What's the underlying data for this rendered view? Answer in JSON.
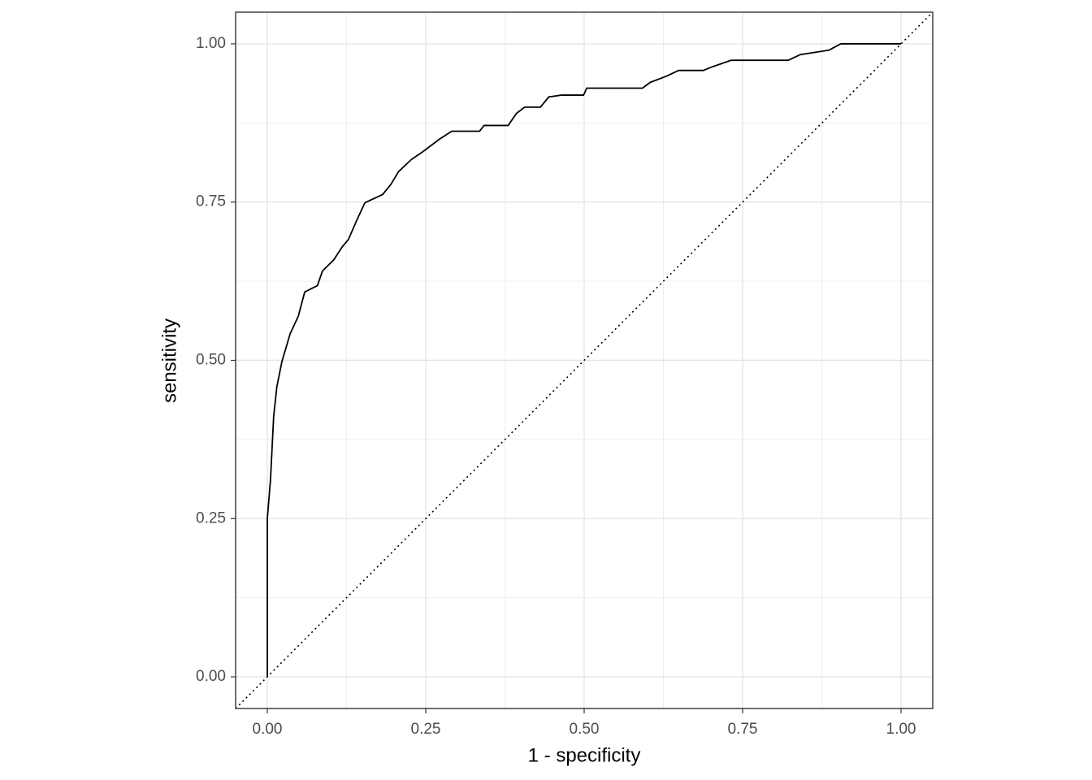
{
  "chart_data": {
    "type": "line",
    "x_label": "1 - specificity",
    "y_label": "sensitivity",
    "xlim": [
      -0.05,
      1.05
    ],
    "ylim": [
      -0.05,
      1.05
    ],
    "xticks": [
      {
        "value": 0,
        "label": "0.00"
      },
      {
        "value": 0.25,
        "label": "0.25"
      },
      {
        "value": 0.5,
        "label": "0.50"
      },
      {
        "value": 0.75,
        "label": "0.75"
      },
      {
        "value": 1,
        "label": "1.00"
      }
    ],
    "yticks": [
      {
        "value": 0,
        "label": "0.00"
      },
      {
        "value": 0.25,
        "label": "0.25"
      },
      {
        "value": 0.5,
        "label": "0.50"
      },
      {
        "value": 0.75,
        "label": "0.75"
      },
      {
        "value": 1,
        "label": "1.00"
      }
    ],
    "minor_xticks": [
      0.125,
      0.375,
      0.625,
      0.875
    ],
    "minor_yticks": [
      0.125,
      0.375,
      0.625,
      0.875
    ],
    "grid": true,
    "reference_line": {
      "slope": 1,
      "intercept": 0,
      "color": "#000000"
    },
    "series": [
      {
        "color": "#000000",
        "x": [
          0,
          0,
          0.005,
          0.01,
          0.015,
          0.023,
          0.036,
          0.049,
          0.059,
          0.079,
          0.087,
          0.105,
          0.118,
          0.128,
          0.141,
          0.154,
          0.182,
          0.195,
          0.207,
          0.227,
          0.246,
          0.271,
          0.291,
          0.335,
          0.342,
          0.38,
          0.393,
          0.406,
          0.431,
          0.444,
          0.464,
          0.499,
          0.504,
          0.592,
          0.604,
          0.63,
          0.649,
          0.688,
          0.7,
          0.732,
          0.822,
          0.841,
          0.886,
          0.905,
          1.0
        ],
        "values": [
          0,
          0.25,
          0.311,
          0.411,
          0.458,
          0.498,
          0.542,
          0.57,
          0.608,
          0.618,
          0.641,
          0.659,
          0.679,
          0.691,
          0.721,
          0.749,
          0.762,
          0.778,
          0.798,
          0.817,
          0.83,
          0.849,
          0.862,
          0.862,
          0.871,
          0.871,
          0.89,
          0.9,
          0.9,
          0.916,
          0.919,
          0.919,
          0.93,
          0.93,
          0.939,
          0.949,
          0.958,
          0.958,
          0.963,
          0.974,
          0.974,
          0.983,
          0.99,
          1.0,
          1.0
        ]
      }
    ]
  }
}
